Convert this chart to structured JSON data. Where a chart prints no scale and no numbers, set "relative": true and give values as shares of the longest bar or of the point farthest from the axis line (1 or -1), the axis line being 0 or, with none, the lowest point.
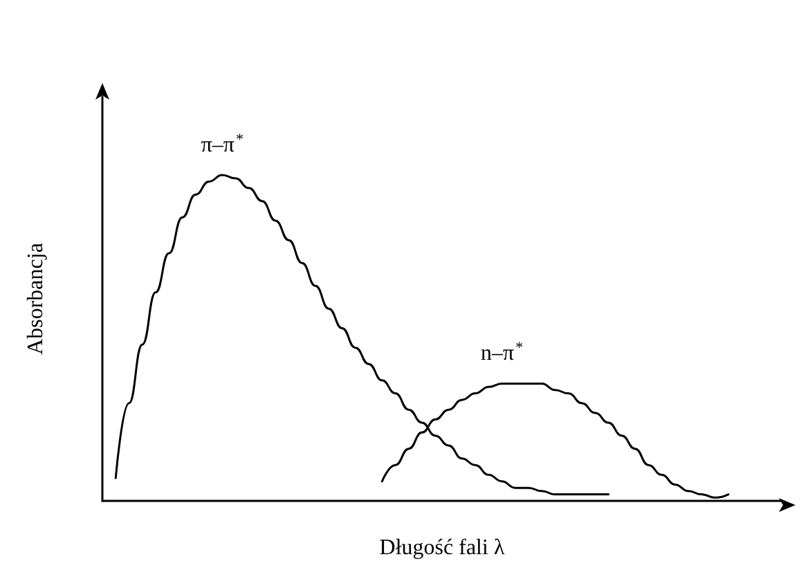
{
  "chart_data": {
    "type": "line",
    "relative": true,
    "xlabel": "Długość fali λ",
    "ylabel": "Absorbancja",
    "grid": false,
    "marker": "none",
    "line_style": "solid",
    "categories": [
      null,
      null,
      null,
      null,
      null,
      null,
      null,
      null,
      null,
      null,
      null,
      null,
      null,
      null,
      null,
      null,
      null,
      null,
      null,
      null,
      null,
      null,
      null,
      null,
      null,
      null,
      null,
      null,
      null,
      null,
      null,
      null,
      null,
      null,
      null,
      null,
      null,
      null,
      null,
      null,
      null,
      null,
      null,
      null,
      null,
      null,
      null,
      null,
      null,
      null,
      null,
      null
    ],
    "annotations": [
      "π–π$^{*}$",
      "n–π$^{*}$"
    ],
    "series": [
      {
        "color": "#000000",
        "values": [
          null,
          0.07,
          0.3,
          0.48,
          0.64,
          0.76,
          0.87,
          0.94,
          0.98,
          1.0,
          0.99,
          0.96,
          0.92,
          0.86,
          0.8,
          0.73,
          0.66,
          0.59,
          0.53,
          0.47,
          0.42,
          0.37,
          0.33,
          0.28,
          0.24,
          0.2,
          0.17,
          0.13,
          0.11,
          0.08,
          0.06,
          0.04,
          0.04,
          0.03,
          0.02,
          0.02,
          0.02,
          0.02,
          0.02,
          null,
          null,
          null,
          null,
          null,
          null,
          null,
          null,
          null,
          null,
          null,
          null,
          null
        ]
      },
      {
        "color": "#000000",
        "values": [
          null,
          null,
          null,
          null,
          null,
          null,
          null,
          null,
          null,
          null,
          null,
          null,
          null,
          null,
          null,
          null,
          null,
          null,
          null,
          null,
          null,
          0.06,
          0.11,
          0.16,
          0.21,
          0.25,
          0.28,
          0.31,
          0.33,
          0.35,
          0.36,
          0.36,
          0.36,
          0.36,
          0.34,
          0.33,
          0.3,
          0.27,
          0.24,
          0.2,
          0.16,
          0.11,
          0.08,
          0.05,
          0.03,
          0.02,
          0.01,
          0.02,
          null,
          null,
          null,
          null
        ]
      }
    ]
  }
}
